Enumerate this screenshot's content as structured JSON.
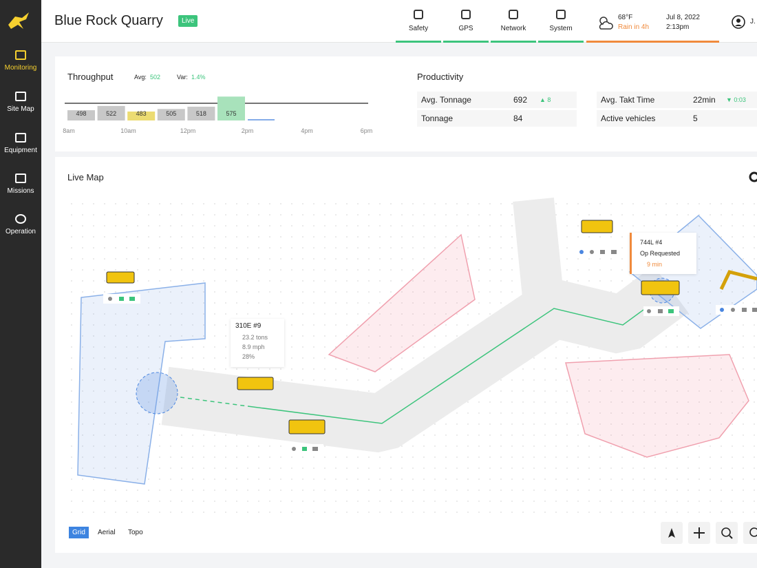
{
  "sidebar": {
    "items": [
      {
        "label": "Monitoring"
      },
      {
        "label": "Site Map"
      },
      {
        "label": "Equipment"
      },
      {
        "label": "Missions"
      },
      {
        "label": "Operation"
      }
    ]
  },
  "header": {
    "title": "Blue Rock Quarry",
    "badge": "Live",
    "status": [
      "Safety",
      "GPS",
      "Network",
      "System"
    ],
    "weather": {
      "temp": "68°F",
      "forecast": "Rain in 4h"
    },
    "date": "Jul 8, 2022",
    "time": "2:13pm",
    "user": "J."
  },
  "throughput": {
    "title": "Throughput",
    "avg_label": "Avg:",
    "avg": "502",
    "var_label": "Var:",
    "var": "1.4%",
    "bars": [
      {
        "value": 498,
        "color": "#c8c8c8"
      },
      {
        "value": 522,
        "color": "#c8c8c8"
      },
      {
        "value": 483,
        "color": "#ecdc72"
      },
      {
        "value": 505,
        "color": "#c8c8c8"
      },
      {
        "value": 518,
        "color": "#c8c8c8"
      },
      {
        "value": 575,
        "color": "#a8e2bb"
      }
    ],
    "times": [
      "8am",
      "10am",
      "12pm",
      "2pm",
      "4pm",
      "6pm"
    ]
  },
  "productivity": {
    "title": "Productivity",
    "rows": [
      {
        "label": "Avg. Tonnage",
        "value": "692",
        "delta": "▲ 8"
      },
      {
        "label": "Tonnage",
        "value": "84"
      },
      {
        "label": "Avg. Takt Time",
        "value": "22min",
        "delta": "▼ 0:03"
      },
      {
        "label": "Active vehicles",
        "value": "5"
      }
    ]
  },
  "map": {
    "title": "Live Map",
    "cards": [
      {
        "name": "310E #9",
        "lines": [
          "23.2 tons",
          "8.9 mph",
          "28%"
        ]
      },
      {
        "name": "744L #4",
        "status": "Op Requested",
        "eta": "9 min"
      }
    ],
    "tabs": [
      "Grid",
      "Aerial",
      "Topo"
    ]
  }
}
